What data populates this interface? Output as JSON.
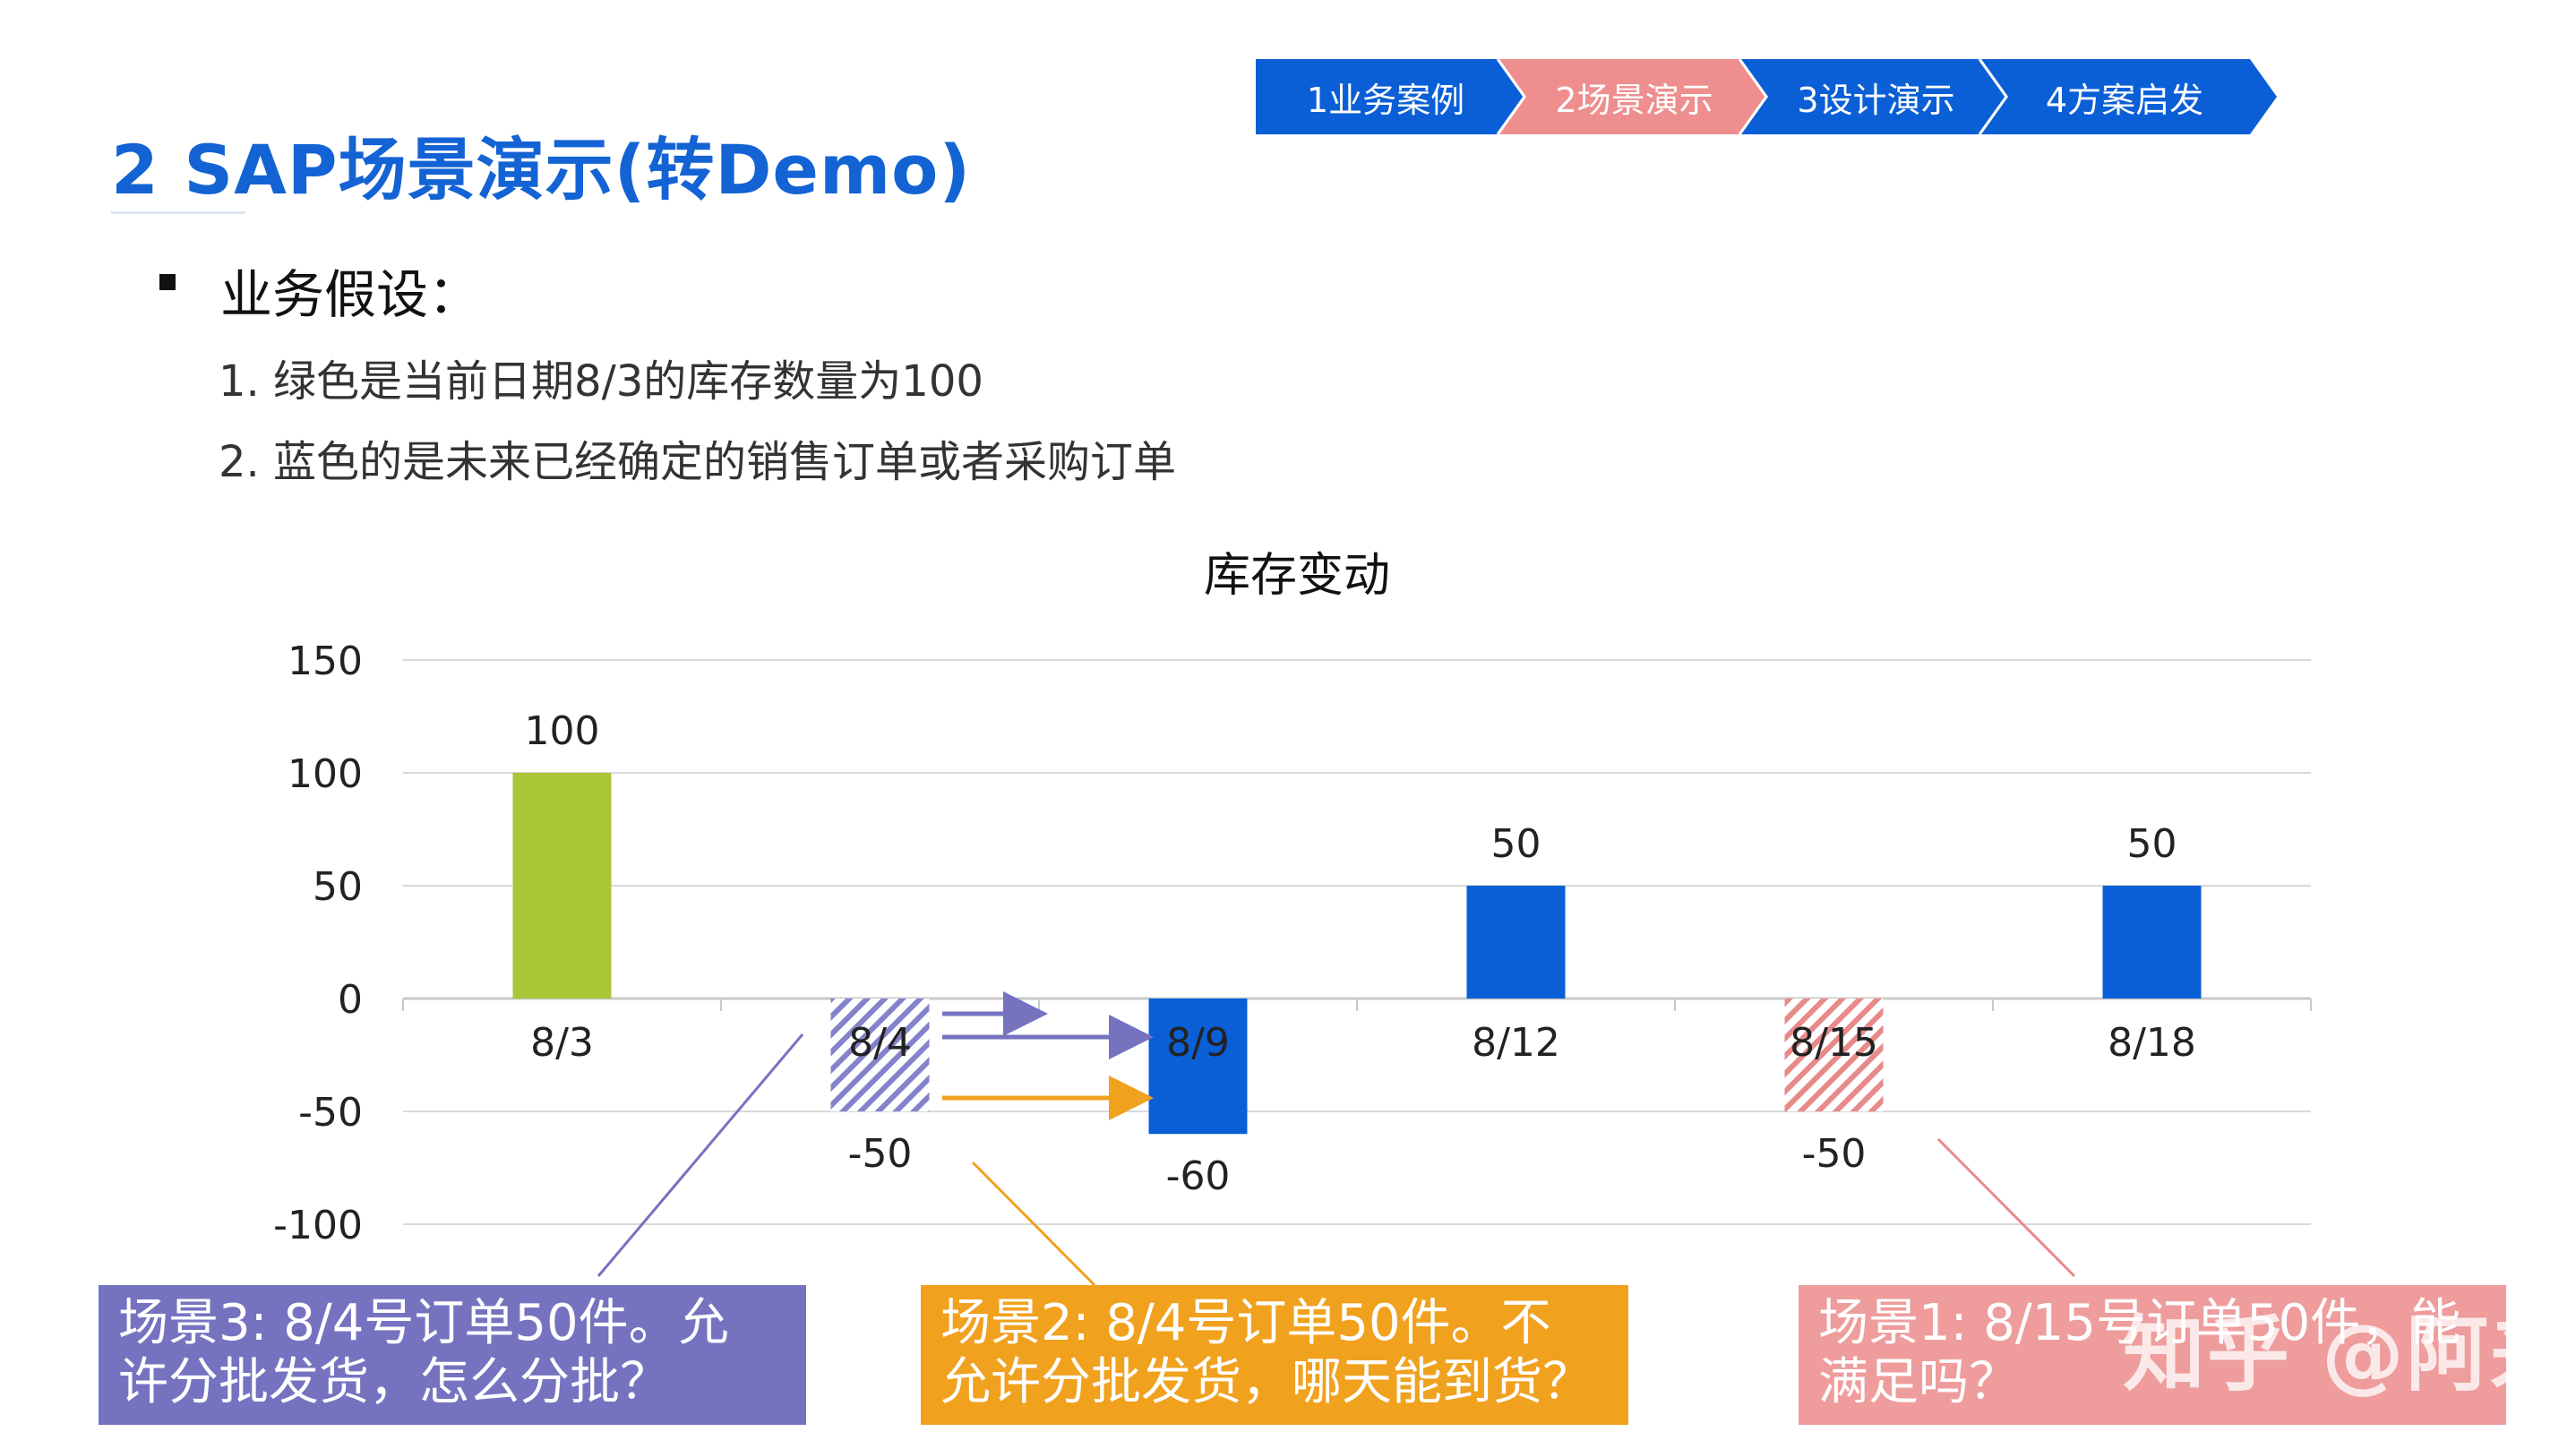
{
  "title": "2 SAP场景演示(转Demo)",
  "steps": [
    {
      "label": "1业务案例",
      "color": "#0b5fd6"
    },
    {
      "label": "2场景演示",
      "color": "#ee8e8e"
    },
    {
      "label": "3设计演示",
      "color": "#0b5fd6"
    },
    {
      "label": "4方案启发",
      "color": "#0b5fd6"
    }
  ],
  "assumptions": {
    "heading": "业务假设：",
    "items": [
      "1. 绿色是当前日期8/3的库存数量为100",
      "2. 蓝色的是未来已经确定的销售订单或者采购订单"
    ]
  },
  "chart_data": {
    "type": "bar",
    "title": "库存变动",
    "categories": [
      "8/3",
      "8/4",
      "8/9",
      "8/12",
      "8/15",
      "8/18"
    ],
    "values": [
      100,
      -50,
      -60,
      50,
      -50,
      50
    ],
    "data_labels": [
      "100",
      "-50",
      "-60",
      "50",
      "-50",
      "50"
    ],
    "bar_styles": [
      "solid-green",
      "hatch-purple",
      "solid-blue",
      "solid-blue",
      "hatch-red",
      "solid-blue"
    ],
    "ylim": [
      -100,
      150
    ],
    "yticks": [
      150,
      100,
      50,
      0,
      -50,
      -100
    ],
    "grid": true,
    "colors": {
      "green": "#a9c637",
      "blue": "#0b5fd6",
      "purple": "#8582cc",
      "red": "#e88a8a",
      "orange": "#f0a11e",
      "grid": "#d9d9d9"
    }
  },
  "callouts": [
    {
      "id": "scene3",
      "text_line1": "场景3: 8/4号订单50件。允",
      "text_line2": "许分批发货，怎么分批？"
    },
    {
      "id": "scene2",
      "text_line1": "场景2: 8/4号订单50件。不",
      "text_line2": "允许分批发货，哪天能到货？"
    },
    {
      "id": "scene1",
      "text_line1": "场景1: 8/15号订单50件，能",
      "text_line2": "满足吗？"
    }
  ],
  "watermark": "知乎 @阿来"
}
